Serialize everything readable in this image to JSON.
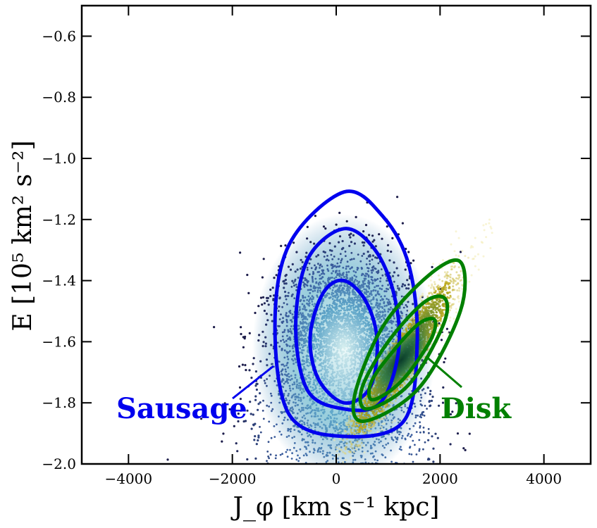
{
  "chart_data": {
    "type": "scatter",
    "xlabel": "J_φ [km s⁻¹ kpc]",
    "ylabel": "E [10⁵ km² s⁻²]",
    "xlim": [
      -4900,
      4900
    ],
    "ylim": [
      -2.0,
      -0.5
    ],
    "x_ticks": [
      -4000,
      -2000,
      0,
      2000,
      4000
    ],
    "x_tick_labels": [
      "−4000",
      "−2000",
      "0",
      "2000",
      "4000"
    ],
    "y_ticks": [
      -0.6,
      -0.8,
      -1.0,
      -1.2,
      -1.4,
      -1.6,
      -1.8,
      -2.0
    ],
    "y_tick_labels": [
      "−0.6",
      "−0.8",
      "−1.0",
      "−1.2",
      "−1.4",
      "−1.6",
      "−1.8",
      "−2.0"
    ],
    "grid": false,
    "series": [
      {
        "name": "Sausage",
        "color": "#0000ee",
        "point_colormap": [
          "#1c1c4a",
          "#3b5fa0",
          "#5ea5c8",
          "#d8f0f0"
        ],
        "center": [
          150,
          -1.62
        ],
        "contour_levels": [
          [
            [
              150,
              -1.11
            ],
            [
              900,
              -1.19
            ],
            [
              1400,
              -1.35
            ],
            [
              1560,
              -1.6
            ],
            [
              1300,
              -1.86
            ],
            [
              150,
              -1.91
            ],
            [
              -900,
              -1.84
            ],
            [
              -1180,
              -1.55
            ],
            [
              -900,
              -1.28
            ]
          ],
          [
            [
              150,
              -1.23
            ],
            [
              750,
              -1.3
            ],
            [
              1120,
              -1.45
            ],
            [
              1200,
              -1.63
            ],
            [
              850,
              -1.8
            ],
            [
              150,
              -1.82
            ],
            [
              -550,
              -1.76
            ],
            [
              -780,
              -1.55
            ],
            [
              -550,
              -1.33
            ]
          ],
          [
            [
              150,
              -1.4
            ],
            [
              580,
              -1.47
            ],
            [
              790,
              -1.6
            ],
            [
              650,
              -1.75
            ],
            [
              150,
              -1.8
            ],
            [
              -350,
              -1.72
            ],
            [
              -500,
              -1.58
            ],
            [
              -250,
              -1.44
            ]
          ]
        ]
      },
      {
        "name": "Disk",
        "color": "#008000",
        "point_colormap": [
          "#0b3d2a",
          "#6e8f30",
          "#bba81c",
          "#f2ebb0"
        ],
        "center": [
          1300,
          -1.65
        ],
        "contour_levels": [
          [
            [
              2400,
              -1.34
            ],
            [
              2390,
              -1.5
            ],
            [
              1600,
              -1.75
            ],
            [
              550,
              -1.86
            ],
            [
              350,
              -1.78
            ],
            [
              900,
              -1.55
            ],
            [
              1800,
              -1.38
            ]
          ],
          [
            [
              2100,
              -1.46
            ],
            [
              2050,
              -1.55
            ],
            [
              1400,
              -1.74
            ],
            [
              600,
              -1.82
            ],
            [
              500,
              -1.75
            ],
            [
              1000,
              -1.6
            ],
            [
              1700,
              -1.47
            ]
          ],
          [
            [
              1900,
              -1.53
            ],
            [
              1800,
              -1.6
            ],
            [
              1250,
              -1.73
            ],
            [
              700,
              -1.79
            ],
            [
              680,
              -1.73
            ],
            [
              1100,
              -1.63
            ],
            [
              1600,
              -1.54
            ]
          ]
        ]
      }
    ],
    "annotations": [
      {
        "text": "Sausage",
        "color": "#0000ee",
        "arrow_to": [
          -1180,
          -1.68
        ]
      },
      {
        "text": "Disk",
        "color": "#008000",
        "arrow_to": [
          1720,
          -1.64
        ]
      }
    ]
  }
}
